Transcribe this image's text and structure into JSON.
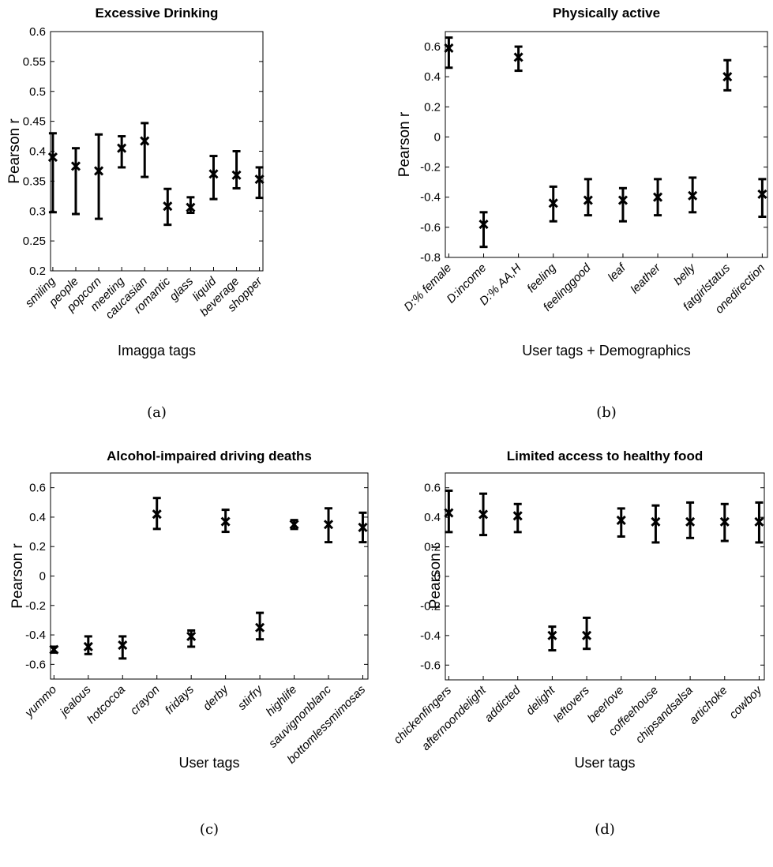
{
  "chart_data": [
    {
      "type": "scatter",
      "title": "Excessive Drinking",
      "xlabel": "Imagga tags",
      "ylabel": "Pearson r",
      "caption": "(a)",
      "ylim": [
        0.2,
        0.6
      ],
      "yticks": [
        "0.2",
        "0.25",
        "0.3",
        "0.35",
        "0.4",
        "0.45",
        "0.5",
        "0.55",
        "0.6"
      ],
      "yticks_values": [
        0.2,
        0.25,
        0.3,
        0.35,
        0.4,
        0.45,
        0.5,
        0.55,
        0.6
      ],
      "categories": [
        "smiling",
        "people",
        "popcorn",
        "meeting",
        "caucasian",
        "romantic",
        "glass",
        "liquid",
        "beverage",
        "shopper"
      ],
      "values": [
        0.39,
        0.375,
        0.367,
        0.405,
        0.417,
        0.308,
        0.306,
        0.362,
        0.36,
        0.353
      ],
      "err_low": [
        0.298,
        0.295,
        0.287,
        0.373,
        0.357,
        0.277,
        0.297,
        0.32,
        0.338,
        0.322
      ],
      "err_high": [
        0.43,
        0.405,
        0.428,
        0.425,
        0.447,
        0.337,
        0.323,
        0.392,
        0.4,
        0.373
      ],
      "grid": false
    },
    {
      "type": "scatter",
      "title": "Physically active",
      "xlabel": "User tags + Demographics",
      "ylabel": "Pearson r",
      "caption": "(b)",
      "ylim": [
        -0.8,
        0.7
      ],
      "yticks": [
        "-0.8",
        "-0.6",
        "-0.4",
        "-0.2",
        "0",
        "0.2",
        "0.4",
        "0.6"
      ],
      "yticks_values": [
        -0.8,
        -0.6,
        -0.4,
        -0.2,
        0,
        0.2,
        0.4,
        0.6
      ],
      "categories": [
        "D:% female",
        "D:income",
        "D:% AA,H",
        "feeling",
        "feelinggood",
        "leaf",
        "leather",
        "belly",
        "fatgirlstatus",
        "onedirection"
      ],
      "values": [
        0.59,
        -0.58,
        0.53,
        -0.44,
        -0.42,
        -0.42,
        -0.4,
        -0.39,
        0.4,
        -0.38
      ],
      "err_low": [
        0.46,
        -0.73,
        0.44,
        -0.56,
        -0.52,
        -0.56,
        -0.52,
        -0.5,
        0.31,
        -0.53
      ],
      "err_high": [
        0.66,
        -0.5,
        0.6,
        -0.33,
        -0.28,
        -0.34,
        -0.28,
        -0.27,
        0.51,
        -0.28
      ],
      "grid": false
    },
    {
      "type": "scatter",
      "title": "Alcohol-impaired driving deaths",
      "xlabel": "User tags",
      "ylabel": "Pearson r",
      "caption": "(c)",
      "ylim": [
        -0.7,
        0.7
      ],
      "yticks": [
        "-0.6",
        "-0.4",
        "-0.2",
        "0",
        "0.2",
        "0.4",
        "0.6"
      ],
      "yticks_values": [
        -0.6,
        -0.4,
        -0.2,
        0,
        0.2,
        0.4,
        0.6
      ],
      "categories": [
        "yummo",
        "jealous",
        "hotcocoa",
        "crayon",
        "fridays",
        "derby",
        "stirfry",
        "highlife",
        "sauvignonblanc",
        "bottomlessmimosas"
      ],
      "values": [
        -0.5,
        -0.48,
        -0.47,
        0.42,
        -0.41,
        0.37,
        -0.35,
        0.35,
        0.35,
        0.33
      ],
      "err_low": [
        -0.52,
        -0.53,
        -0.56,
        0.32,
        -0.48,
        0.3,
        -0.43,
        0.32,
        0.23,
        0.23
      ],
      "err_high": [
        -0.48,
        -0.41,
        -0.41,
        0.53,
        -0.37,
        0.45,
        -0.25,
        0.38,
        0.46,
        0.43
      ],
      "grid": false
    },
    {
      "type": "scatter",
      "title": "Limited access to healthy food",
      "xlabel": "User tags",
      "ylabel": "Pearson r",
      "caption": "(d)",
      "ylim": [
        -0.7,
        0.7
      ],
      "yticks": [
        "-0.6",
        "-0.4",
        "-0.2",
        "0",
        "0.2",
        "0.4",
        "0.6"
      ],
      "yticks_values": [
        -0.6,
        -0.4,
        -0.2,
        0,
        0.2,
        0.4,
        0.6
      ],
      "categories": [
        "chickenfingers",
        "afternoondelight",
        "addicted",
        "delight",
        "leftovers",
        "beerlove",
        "coffeehouse",
        "chipsandsalsa",
        "artichoke",
        "cowboy"
      ],
      "values": [
        0.43,
        0.42,
        0.41,
        -0.4,
        -0.4,
        0.38,
        0.37,
        0.37,
        0.37,
        0.37
      ],
      "err_low": [
        0.3,
        0.28,
        0.3,
        -0.5,
        -0.49,
        0.27,
        0.23,
        0.26,
        0.24,
        0.23
      ],
      "err_high": [
        0.58,
        0.56,
        0.49,
        -0.34,
        -0.28,
        0.46,
        0.48,
        0.5,
        0.49,
        0.5
      ],
      "grid": false
    }
  ]
}
